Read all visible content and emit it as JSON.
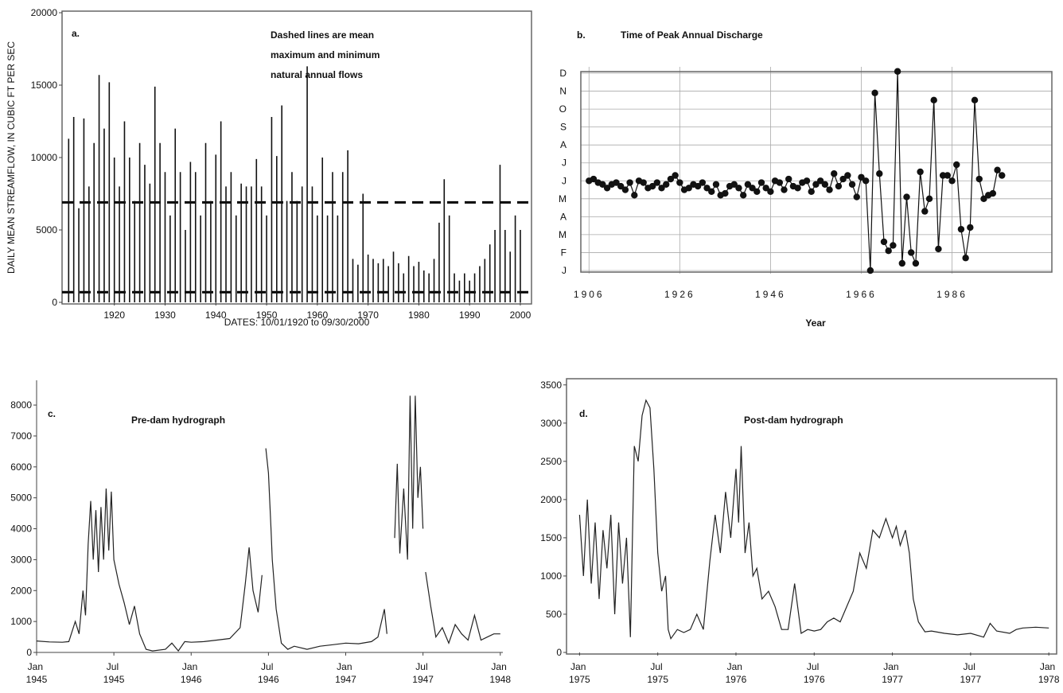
{
  "chart_data": [
    {
      "type": "spike",
      "label": "a.",
      "annotation": [
        "Dashed lines are mean",
        "maximum and minimum",
        "natural annual flows"
      ],
      "y_label": "DAILY MEAN STREAMFLOW, IN CUBIC FT PER SEC",
      "x_label": "DATES: 10/01/1920 to 09/30/2000",
      "color": "#111111",
      "box": true,
      "xlim": [
        1909.7,
        2002.2
      ],
      "xticks": [
        1920,
        1930,
        1940,
        1950,
        1960,
        1970,
        1980,
        1990,
        2000
      ],
      "ylim": [
        0,
        20000
      ],
      "yticks": [
        0,
        5000,
        10000,
        15000,
        20000
      ],
      "hlines": [
        6900,
        700
      ],
      "x": [
        1911,
        1912,
        1913,
        1914,
        1915,
        1916,
        1917,
        1918,
        1919,
        1920,
        1921,
        1922,
        1923,
        1924,
        1925,
        1926,
        1927,
        1928,
        1929,
        1930,
        1931,
        1932,
        1933,
        1934,
        1935,
        1936,
        1937,
        1938,
        1939,
        1940,
        1941,
        1942,
        1943,
        1944,
        1945,
        1946,
        1947,
        1948,
        1949,
        1950,
        1951,
        1952,
        1953,
        1954,
        1955,
        1956,
        1957,
        1958,
        1959,
        1960,
        1961,
        1962,
        1963,
        1964,
        1965,
        1966,
        1967,
        1968,
        1969,
        1970,
        1971,
        1972,
        1973,
        1974,
        1975,
        1976,
        1977,
        1978,
        1979,
        1980,
        1981,
        1982,
        1983,
        1984,
        1985,
        1986,
        1987,
        1988,
        1989,
        1990,
        1991,
        1992,
        1993,
        1994,
        1995,
        1996,
        1997,
        1998,
        1999,
        2000
      ],
      "values": [
        11300,
        12800,
        6500,
        12700,
        8000,
        11000,
        15700,
        12000,
        15200,
        10000,
        8000,
        12500,
        10000,
        7000,
        11000,
        9500,
        8200,
        14900,
        11000,
        9000,
        6000,
        12000,
        9000,
        5000,
        9700,
        9000,
        6000,
        11000,
        7000,
        10200,
        12500,
        8000,
        9000,
        6000,
        8200,
        8000,
        8000,
        9900,
        8000,
        6000,
        12800,
        10100,
        13600,
        7000,
        9000,
        7000,
        8000,
        16300,
        8000,
        6000,
        10000,
        6000,
        9000,
        6000,
        9000,
        10500,
        3000,
        2600,
        7500,
        3300,
        3000,
        2700,
        3000,
        2500,
        3500,
        2700,
        2000,
        3200,
        2500,
        2800,
        2200,
        2000,
        3000,
        5500,
        8500,
        6000,
        2000,
        1500,
        2000,
        1500,
        2000,
        2500,
        3000,
        4000,
        5000,
        9500,
        5000,
        3500,
        6000,
        5000
      ]
    },
    {
      "type": "line",
      "label": "b.",
      "title": "Time of Peak Annual Discharge",
      "x_label": "Year",
      "color": "#111111",
      "markers": true,
      "grid": true,
      "box": true,
      "xlim": [
        1904.2,
        2008
      ],
      "xticks": [
        1906,
        1926,
        1946,
        1966,
        1986
      ],
      "ylim": [
        1,
        12
      ],
      "yticks": [
        {
          "value": 1,
          "label": "J"
        },
        {
          "value": 2,
          "label": "F"
        },
        {
          "value": 3,
          "label": "M"
        },
        {
          "value": 4,
          "label": "A"
        },
        {
          "value": 5,
          "label": "M"
        },
        {
          "value": 6,
          "label": "J"
        },
        {
          "value": 7,
          "label": "J"
        },
        {
          "value": 8,
          "label": "A"
        },
        {
          "value": 9,
          "label": "S"
        },
        {
          "value": 10,
          "label": "O"
        },
        {
          "value": 11,
          "label": "N"
        },
        {
          "value": 12,
          "label": "D"
        }
      ],
      "x": [
        1906,
        1907,
        1908,
        1909,
        1910,
        1911,
        1912,
        1913,
        1914,
        1915,
        1916,
        1917,
        1918,
        1919,
        1920,
        1921,
        1922,
        1923,
        1924,
        1925,
        1926,
        1927,
        1928,
        1929,
        1930,
        1931,
        1932,
        1933,
        1934,
        1935,
        1936,
        1937,
        1938,
        1939,
        1940,
        1941,
        1942,
        1943,
        1944,
        1945,
        1946,
        1947,
        1948,
        1949,
        1950,
        1951,
        1952,
        1953,
        1954,
        1955,
        1956,
        1957,
        1958,
        1959,
        1960,
        1961,
        1962,
        1963,
        1964,
        1965,
        1966,
        1967,
        1968,
        1969,
        1970,
        1971,
        1972,
        1973,
        1974,
        1975,
        1976,
        1977,
        1978,
        1979,
        1980,
        1981,
        1982,
        1983,
        1984,
        1985,
        1986,
        1987,
        1988,
        1989,
        1990,
        1991,
        1992,
        1993,
        1994,
        1995,
        1996,
        1997
      ],
      "values": [
        6.0,
        6.1,
        5.9,
        5.8,
        5.6,
        5.8,
        5.9,
        5.7,
        5.5,
        5.9,
        5.2,
        6.0,
        5.9,
        5.6,
        5.7,
        5.9,
        5.6,
        5.8,
        6.1,
        6.3,
        5.9,
        5.5,
        5.6,
        5.8,
        5.7,
        5.9,
        5.6,
        5.4,
        5.8,
        5.2,
        5.3,
        5.7,
        5.8,
        5.6,
        5.2,
        5.8,
        5.6,
        5.4,
        5.9,
        5.6,
        5.4,
        6.0,
        5.9,
        5.5,
        6.1,
        5.7,
        5.6,
        5.9,
        6.0,
        5.4,
        5.8,
        6.0,
        5.8,
        5.5,
        6.4,
        5.7,
        6.1,
        6.3,
        5.8,
        5.1,
        6.2,
        6.0,
        1.0,
        10.9,
        6.4,
        2.6,
        2.1,
        2.4,
        12.1,
        1.4,
        5.1,
        2.0,
        1.4,
        6.5,
        4.3,
        5.0,
        10.5,
        2.2,
        6.3,
        6.3,
        6.0,
        6.9,
        3.3,
        1.7,
        3.4,
        10.5,
        6.1,
        5.0,
        5.2,
        5.3,
        6.6,
        6.3
      ]
    },
    {
      "type": "line",
      "label": "c.",
      "title": "Pre-dam hydrograph",
      "color": "#222222",
      "box": false,
      "xlim": [
        0,
        36.2
      ],
      "xticks": [
        {
          "value": 0,
          "label": "Jan 1945"
        },
        {
          "value": 6,
          "label": "Jul 1945"
        },
        {
          "value": 12,
          "label": "Jan 1946"
        },
        {
          "value": 18,
          "label": "Jul 1946"
        },
        {
          "value": 24,
          "label": "Jan 1947"
        },
        {
          "value": 30,
          "label": "Jul 1947"
        },
        {
          "value": 36,
          "label": "Jan 1948"
        }
      ],
      "ylim": [
        0,
        8800
      ],
      "yticks": [
        0,
        1000,
        2000,
        3000,
        4000,
        5000,
        6000,
        7000,
        8000
      ],
      "x": [
        0,
        1,
        2,
        2.5,
        3,
        3.3,
        3.6,
        3.8,
        4,
        4.2,
        4.4,
        4.6,
        4.8,
        5,
        5.2,
        5.4,
        5.6,
        5.8,
        6,
        6.4,
        6.8,
        7.2,
        7.6,
        8,
        8.5,
        9,
        10,
        10.5,
        11,
        11.5,
        12,
        13,
        14,
        15,
        15.8,
        16.2,
        16.5,
        16.8,
        17.2,
        17.5,
        17.7,
        17.8,
        18,
        18.2,
        18.3,
        18.6,
        19,
        19.5,
        20,
        21,
        22,
        23,
        24,
        25,
        26,
        26.5,
        27,
        27.2,
        27.5,
        27.8,
        28,
        28.2,
        28.5,
        28.8,
        29,
        29.2,
        29.4,
        29.6,
        29.8,
        30,
        30.1,
        30.2,
        30.6,
        31,
        31.5,
        32,
        32.5,
        33,
        33.5,
        34,
        34.5,
        35,
        35.5,
        36
      ],
      "values": [
        370,
        340,
        330,
        350,
        1000,
        600,
        2000,
        1200,
        3500,
        4900,
        3000,
        4600,
        2600,
        4700,
        3000,
        5300,
        3300,
        5200,
        3000,
        2200,
        1600,
        900,
        1500,
        600,
        100,
        50,
        100,
        300,
        50,
        350,
        330,
        350,
        400,
        450,
        800,
        2200,
        3400,
        2000,
        1300,
        2500,
        null,
        6600,
        5800,
        4000,
        3000,
        1400,
        300,
        100,
        200,
        100,
        200,
        250,
        300,
        280,
        350,
        500,
        1400,
        600,
        null,
        3700,
        6100,
        3200,
        5300,
        3000,
        8300,
        4000,
        8300,
        5000,
        6000,
        4000,
        null,
        2600,
        1500,
        500,
        800,
        300,
        900,
        600,
        400,
        1200,
        400,
        500,
        600,
        600
      ]
    },
    {
      "type": "line",
      "label": "d.",
      "title": "Post-dam hydrograph",
      "color": "#222222",
      "box": true,
      "xlim": [
        -1,
        36.6
      ],
      "xticks": [
        {
          "value": 0,
          "label": "Jan 1975"
        },
        {
          "value": 6,
          "label": "Jul 1975"
        },
        {
          "value": 12,
          "label": "Jan 1976"
        },
        {
          "value": 18,
          "label": "Jul 1976"
        },
        {
          "value": 24,
          "label": "Jan 1977"
        },
        {
          "value": 30,
          "label": "Jul 1977"
        },
        {
          "value": 36,
          "label": "Jan 1978"
        }
      ],
      "ylim": [
        0,
        3560
      ],
      "yticks": [
        0,
        500,
        1000,
        1500,
        2000,
        2500,
        3000,
        3500
      ],
      "x": [
        0,
        0.3,
        0.6,
        0.9,
        1.2,
        1.5,
        1.8,
        2.1,
        2.4,
        2.7,
        3,
        3.3,
        3.6,
        3.9,
        4.2,
        4.5,
        4.8,
        5.1,
        5.4,
        5.7,
        6,
        6.3,
        6.6,
        6.8,
        7,
        7.5,
        8,
        8.5,
        9,
        9.5,
        10,
        10.4,
        10.8,
        11.2,
        11.6,
        12,
        12.2,
        12.4,
        12.7,
        13,
        13.3,
        13.6,
        14,
        14.5,
        15,
        15.5,
        16,
        16.5,
        17,
        17.5,
        18,
        18.5,
        19,
        19.5,
        20,
        20.5,
        21,
        21.5,
        22,
        22.5,
        23,
        23.5,
        24,
        24.3,
        24.6,
        25,
        25.3,
        25.6,
        26,
        26.5,
        27,
        28,
        29,
        30,
        31,
        31.5,
        32,
        33,
        33.5,
        34,
        35,
        36
      ],
      "values": [
        1800,
        1000,
        2000,
        900,
        1700,
        700,
        1600,
        1100,
        1800,
        500,
        1700,
        900,
        1500,
        200,
        2700,
        2500,
        3100,
        3300,
        3200,
        2400,
        1300,
        800,
        1000,
        300,
        180,
        300,
        260,
        300,
        500,
        300,
        1200,
        1800,
        1300,
        2100,
        1500,
        2400,
        1700,
        2700,
        1300,
        1700,
        1000,
        1100,
        700,
        800,
        600,
        300,
        300,
        900,
        250,
        300,
        280,
        300,
        400,
        450,
        400,
        600,
        800,
        1300,
        1100,
        1600,
        1500,
        1750,
        1500,
        1650,
        1400,
        1600,
        1300,
        700,
        400,
        270,
        280,
        250,
        230,
        250,
        200,
        380,
        280,
        250,
        300,
        320,
        330,
        320
      ]
    }
  ]
}
